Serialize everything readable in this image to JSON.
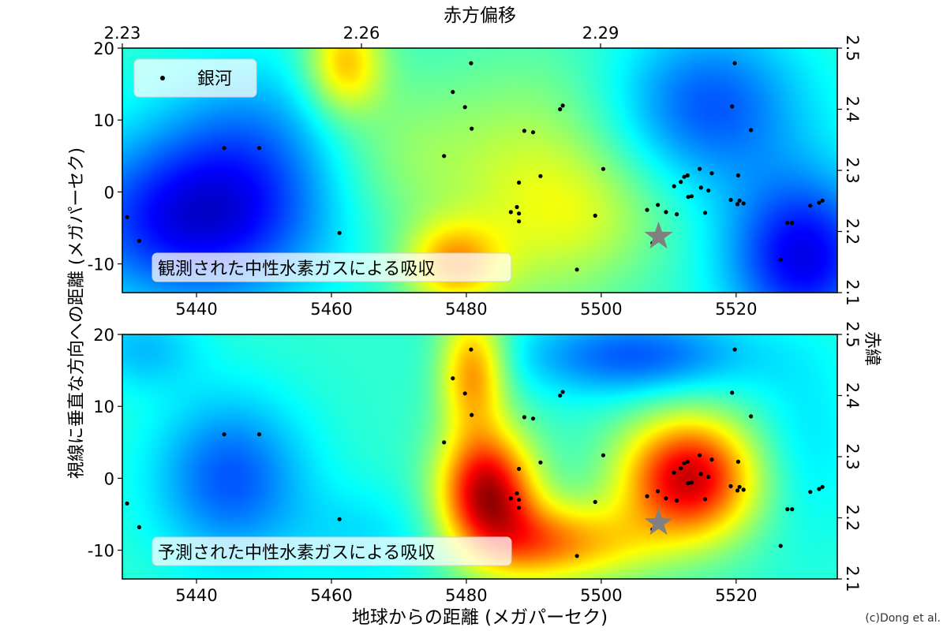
{
  "chart_data": {
    "type": "heatmap",
    "top_axis": {
      "label": "赤方偏移",
      "ticks": [
        "2.23",
        "2.26",
        "2.29"
      ]
    },
    "bottom_axis": {
      "label": "地球からの距離 (メガパーセク)",
      "ticks": [
        "5440",
        "5460",
        "5480",
        "5500",
        "5520"
      ]
    },
    "left_axis": {
      "label": "視線に垂直な方向への距離 (メガパーセク)",
      "ticks": [
        "20",
        "10",
        "0",
        "-10"
      ]
    },
    "right_axis": {
      "label": "赤緯",
      "ticks": [
        "2.5",
        "2.4",
        "2.3",
        "2.2",
        "2.1"
      ]
    },
    "xlim": [
      5429,
      5535
    ],
    "ylim": [
      -14,
      20
    ],
    "legend": {
      "label": "銀河",
      "placement": "upper-left"
    },
    "colormap": "jet",
    "panels": [
      {
        "caption": "観測された中性水素ガスによる吸収",
        "blobs": [
          {
            "x": 5440,
            "y": -4,
            "v": -0.9,
            "sx": 13,
            "sy": 8
          },
          {
            "x": 5448,
            "y": 8,
            "v": -0.35,
            "sx": 10,
            "sy": 8
          },
          {
            "x": 5530,
            "y": -9,
            "v": -0.9,
            "sx": 8,
            "sy": 8
          },
          {
            "x": 5516,
            "y": 12,
            "v": -0.6,
            "sx": 10,
            "sy": 8
          },
          {
            "x": 5462,
            "y": 18,
            "v": 0.75,
            "sx": 4,
            "sy": 5
          },
          {
            "x": 5478,
            "y": -10,
            "v": 0.75,
            "sx": 5,
            "sy": 4
          },
          {
            "x": 5490,
            "y": 0,
            "v": 0.45,
            "sx": 10,
            "sy": 12
          },
          {
            "x": 5500,
            "y": -3,
            "v": 0.2,
            "sx": 8,
            "sy": 6
          },
          {
            "x": 5470,
            "y": 5,
            "v": 0.25,
            "sx": 8,
            "sy": 8
          }
        ]
      },
      {
        "caption": "予測された中性水素ガスによる吸収",
        "blobs": [
          {
            "x": 5483,
            "y": -2,
            "v": 1.5,
            "sx": 5,
            "sy": 6
          },
          {
            "x": 5481,
            "y": 15,
            "v": 0.9,
            "sx": 3.5,
            "sy": 6
          },
          {
            "x": 5490,
            "y": -9,
            "v": 0.7,
            "sx": 6,
            "sy": 4
          },
          {
            "x": 5513,
            "y": 0,
            "v": 1.45,
            "sx": 7,
            "sy": 6
          },
          {
            "x": 5500,
            "y": -9,
            "v": 0.5,
            "sx": 7,
            "sy": 4
          },
          {
            "x": 5445,
            "y": 0,
            "v": -0.6,
            "sx": 8,
            "sy": 8
          },
          {
            "x": 5505,
            "y": 17,
            "v": -0.6,
            "sx": 12,
            "sy": 4
          },
          {
            "x": 5432,
            "y": 18,
            "v": -0.3,
            "sx": 6,
            "sy": 4
          },
          {
            "x": 5465,
            "y": -8,
            "v": -0.2,
            "sx": 8,
            "sy": 5
          },
          {
            "x": 5530,
            "y": 5,
            "v": -0.2,
            "sx": 6,
            "sy": 10
          }
        ]
      }
    ],
    "galaxies": [
      {
        "x": 5429.7,
        "y": -3.5
      },
      {
        "x": 5431.5,
        "y": -6.8
      },
      {
        "x": 5444.1,
        "y": 6.1
      },
      {
        "x": 5449.3,
        "y": 6.1
      },
      {
        "x": 5461.2,
        "y": -5.7
      },
      {
        "x": 5476.7,
        "y": 5.0
      },
      {
        "x": 5478.0,
        "y": 13.9
      },
      {
        "x": 5479.8,
        "y": 11.8
      },
      {
        "x": 5480.7,
        "y": 17.9
      },
      {
        "x": 5480.8,
        "y": 8.8
      },
      {
        "x": 5486.6,
        "y": -2.8
      },
      {
        "x": 5487.5,
        "y": -2.1
      },
      {
        "x": 5487.8,
        "y": -3.0
      },
      {
        "x": 5487.8,
        "y": -4.1
      },
      {
        "x": 5487.8,
        "y": 1.3
      },
      {
        "x": 5488.6,
        "y": 8.5
      },
      {
        "x": 5489.9,
        "y": 8.3
      },
      {
        "x": 5491.0,
        "y": 2.2
      },
      {
        "x": 5493.9,
        "y": 11.5
      },
      {
        "x": 5494.3,
        "y": 12.0
      },
      {
        "x": 5499.1,
        "y": -3.3
      },
      {
        "x": 5500.3,
        "y": 3.2
      },
      {
        "x": 5496.4,
        "y": -10.8
      },
      {
        "x": 5506.8,
        "y": -2.5
      },
      {
        "x": 5507.6,
        "y": -7.1
      },
      {
        "x": 5508.4,
        "y": -1.8
      },
      {
        "x": 5509.6,
        "y": -2.8
      },
      {
        "x": 5510.8,
        "y": 0.8
      },
      {
        "x": 5511.2,
        "y": -3.1
      },
      {
        "x": 5511.8,
        "y": 1.4
      },
      {
        "x": 5512.3,
        "y": 2.1
      },
      {
        "x": 5512.8,
        "y": 2.3
      },
      {
        "x": 5512.9,
        "y": -0.7
      },
      {
        "x": 5513.4,
        "y": -0.6
      },
      {
        "x": 5514.6,
        "y": 3.2
      },
      {
        "x": 5514.8,
        "y": 0.6
      },
      {
        "x": 5515.4,
        "y": -2.9
      },
      {
        "x": 5515.9,
        "y": 0.2
      },
      {
        "x": 5516.4,
        "y": 2.6
      },
      {
        "x": 5519.2,
        "y": -1.1
      },
      {
        "x": 5519.4,
        "y": 11.9
      },
      {
        "x": 5519.8,
        "y": 17.9
      },
      {
        "x": 5520.3,
        "y": 2.3
      },
      {
        "x": 5520.2,
        "y": -1.7
      },
      {
        "x": 5520.5,
        "y": -1.2
      },
      {
        "x": 5521.1,
        "y": -1.6
      },
      {
        "x": 5522.2,
        "y": 8.6
      },
      {
        "x": 5526.6,
        "y": -9.4
      },
      {
        "x": 5527.6,
        "y": -4.3
      },
      {
        "x": 5528.3,
        "y": -4.3
      },
      {
        "x": 5531.0,
        "y": -1.9
      },
      {
        "x": 5532.3,
        "y": -1.5
      },
      {
        "x": 5532.8,
        "y": -1.2
      }
    ],
    "star": {
      "x": 5508.5,
      "y": -6.2,
      "color": "#808080"
    }
  },
  "credit": "(c)Dong et al."
}
